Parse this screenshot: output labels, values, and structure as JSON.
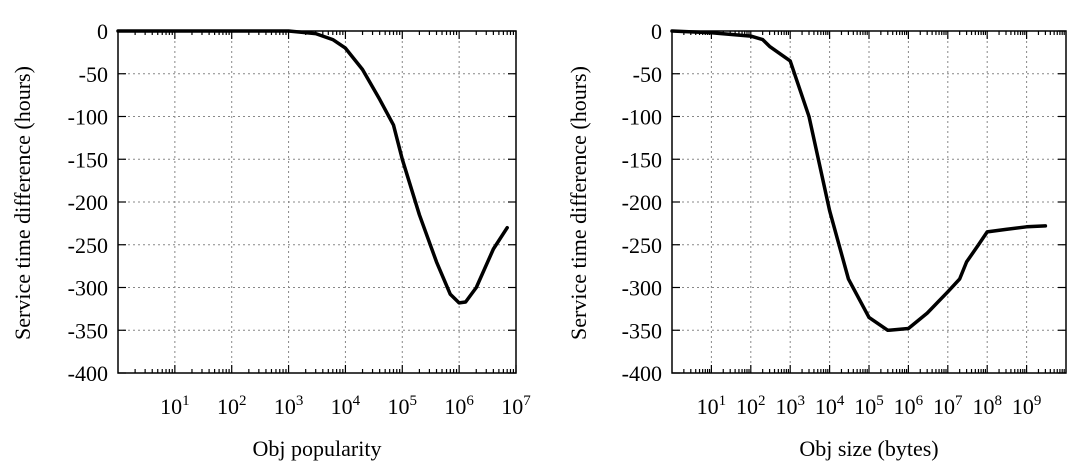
{
  "chart_data": [
    {
      "type": "line",
      "xlabel": "Obj popularity",
      "ylabel": "Service time difference (hours)",
      "xscale": "log",
      "xlim": [
        1,
        10000000
      ],
      "ylim": [
        -400,
        0
      ],
      "yticks": [
        0,
        -50,
        -100,
        -150,
        -200,
        -250,
        -300,
        -350,
        -400
      ],
      "xticks": [
        {
          "exp": 1,
          "value": 10
        },
        {
          "exp": 2,
          "value": 100
        },
        {
          "exp": 3,
          "value": 1000
        },
        {
          "exp": 4,
          "value": 10000
        },
        {
          "exp": 5,
          "value": 100000
        },
        {
          "exp": 6,
          "value": 1000000
        },
        {
          "exp": 7,
          "value": 10000000
        }
      ],
      "grid": true,
      "series": [
        {
          "color": "#000000",
          "points": [
            [
              1,
              0
            ],
            [
              100,
              0
            ],
            [
              1000,
              0
            ],
            [
              3000,
              -3
            ],
            [
              6000,
              -10
            ],
            [
              10000,
              -20
            ],
            [
              20000,
              -45
            ],
            [
              40000,
              -80
            ],
            [
              70000,
              -110
            ],
            [
              100000,
              -150
            ],
            [
              200000,
              -215
            ],
            [
              400000,
              -270
            ],
            [
              700000,
              -308
            ],
            [
              1000000,
              -318
            ],
            [
              1300000,
              -317
            ],
            [
              2000000,
              -300
            ],
            [
              4000000,
              -255
            ],
            [
              7000000,
              -230
            ]
          ]
        }
      ]
    },
    {
      "type": "line",
      "xlabel": "Obj size (bytes)",
      "ylabel": "Service time difference (hours)",
      "xscale": "log",
      "xlim": [
        1,
        10000000000
      ],
      "ylim": [
        -400,
        0
      ],
      "yticks": [
        0,
        -50,
        -100,
        -150,
        -200,
        -250,
        -300,
        -350,
        -400
      ],
      "xticks": [
        {
          "exp": 1,
          "value": 10
        },
        {
          "exp": 2,
          "value": 100
        },
        {
          "exp": 3,
          "value": 1000
        },
        {
          "exp": 4,
          "value": 10000
        },
        {
          "exp": 5,
          "value": 100000
        },
        {
          "exp": 6,
          "value": 1000000
        },
        {
          "exp": 7,
          "value": 10000000
        },
        {
          "exp": 8,
          "value": 100000000
        },
        {
          "exp": 9,
          "value": 1000000000
        }
      ],
      "grid": true,
      "series": [
        {
          "color": "#000000",
          "points": [
            [
              1,
              0
            ],
            [
              10,
              -2
            ],
            [
              100,
              -6
            ],
            [
              200,
              -10
            ],
            [
              300,
              -18
            ],
            [
              1000,
              -35
            ],
            [
              3000,
              -100
            ],
            [
              10000,
              -210
            ],
            [
              30000,
              -290
            ],
            [
              100000,
              -335
            ],
            [
              300000,
              -350
            ],
            [
              1000000,
              -348
            ],
            [
              3000000,
              -330
            ],
            [
              10000000,
              -305
            ],
            [
              20000000,
              -290
            ],
            [
              30000000,
              -270
            ],
            [
              60000000,
              -250
            ],
            [
              100000000,
              -235
            ],
            [
              300000000,
              -232
            ],
            [
              1000000000,
              -229
            ],
            [
              3000000000,
              -228
            ]
          ]
        }
      ]
    }
  ]
}
